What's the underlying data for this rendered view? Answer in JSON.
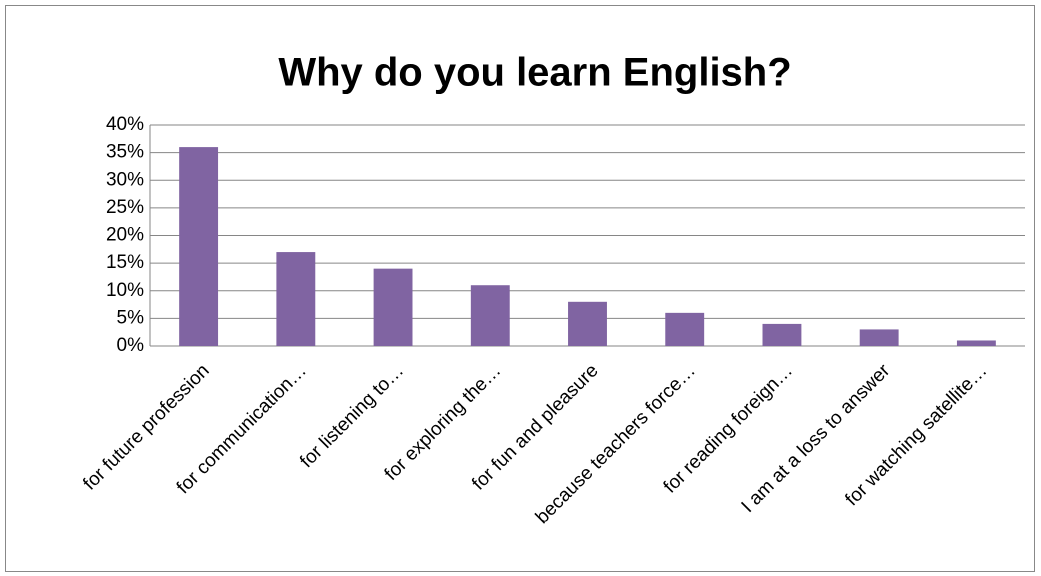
{
  "chart_data": {
    "type": "bar",
    "title": "Why do you learn English?",
    "categories": [
      "for future profession",
      "for communication…",
      "for listening to…",
      "for exploring the…",
      "for fun and pleasure",
      "because teachers force…",
      "for reading foreign…",
      "I am at a loss to answer",
      "for watching satellite…"
    ],
    "values": [
      36,
      17,
      14,
      11,
      8,
      6,
      4,
      3,
      1
    ],
    "color": "#8064a2",
    "ylim": [
      0,
      40
    ],
    "yticks": [
      {
        "value": 0,
        "label": "0%"
      },
      {
        "value": 5,
        "label": "5%"
      },
      {
        "value": 10,
        "label": "10%"
      },
      {
        "value": 15,
        "label": "15%"
      },
      {
        "value": 20,
        "label": "20%"
      },
      {
        "value": 25,
        "label": "25%"
      },
      {
        "value": 30,
        "label": "30%"
      },
      {
        "value": 35,
        "label": "35%"
      },
      {
        "value": 40,
        "label": "40%"
      }
    ],
    "grid": true
  }
}
